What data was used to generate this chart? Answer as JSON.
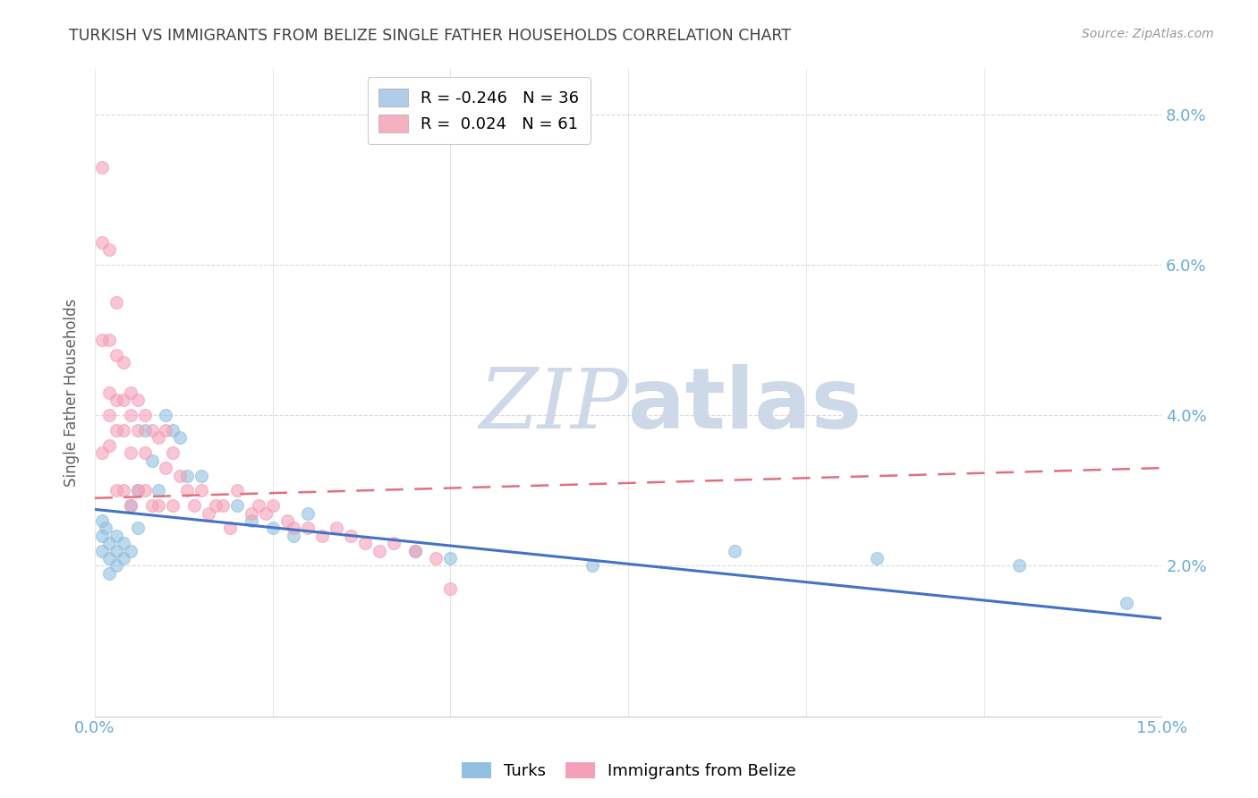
{
  "title": "TURKISH VS IMMIGRANTS FROM BELIZE SINGLE FATHER HOUSEHOLDS CORRELATION CHART",
  "source": "Source: ZipAtlas.com",
  "ylabel": "Single Father Households",
  "xmin": 0.0,
  "xmax": 0.15,
  "ymin": 0.0,
  "ymax": 0.086,
  "turks_scatter_x": [
    0.001,
    0.001,
    0.001,
    0.0015,
    0.002,
    0.002,
    0.002,
    0.003,
    0.003,
    0.003,
    0.004,
    0.004,
    0.005,
    0.005,
    0.006,
    0.006,
    0.007,
    0.008,
    0.009,
    0.01,
    0.011,
    0.012,
    0.013,
    0.015,
    0.02,
    0.022,
    0.025,
    0.028,
    0.03,
    0.045,
    0.05,
    0.07,
    0.09,
    0.11,
    0.13,
    0.145
  ],
  "turks_scatter_y": [
    0.026,
    0.024,
    0.022,
    0.025,
    0.023,
    0.021,
    0.019,
    0.024,
    0.022,
    0.02,
    0.023,
    0.021,
    0.028,
    0.022,
    0.03,
    0.025,
    0.038,
    0.034,
    0.03,
    0.04,
    0.038,
    0.037,
    0.032,
    0.032,
    0.028,
    0.026,
    0.025,
    0.024,
    0.027,
    0.022,
    0.021,
    0.02,
    0.022,
    0.021,
    0.02,
    0.015
  ],
  "belize_scatter_x": [
    0.001,
    0.001,
    0.001,
    0.001,
    0.002,
    0.002,
    0.002,
    0.002,
    0.002,
    0.003,
    0.003,
    0.003,
    0.003,
    0.003,
    0.004,
    0.004,
    0.004,
    0.004,
    0.005,
    0.005,
    0.005,
    0.005,
    0.006,
    0.006,
    0.006,
    0.007,
    0.007,
    0.007,
    0.008,
    0.008,
    0.009,
    0.009,
    0.01,
    0.01,
    0.011,
    0.011,
    0.012,
    0.013,
    0.014,
    0.015,
    0.016,
    0.017,
    0.018,
    0.019,
    0.02,
    0.022,
    0.023,
    0.024,
    0.025,
    0.027,
    0.028,
    0.03,
    0.032,
    0.034,
    0.036,
    0.038,
    0.04,
    0.042,
    0.045,
    0.048,
    0.05
  ],
  "belize_scatter_y": [
    0.073,
    0.063,
    0.05,
    0.035,
    0.062,
    0.05,
    0.043,
    0.04,
    0.036,
    0.055,
    0.048,
    0.042,
    0.038,
    0.03,
    0.047,
    0.042,
    0.038,
    0.03,
    0.043,
    0.04,
    0.035,
    0.028,
    0.042,
    0.038,
    0.03,
    0.04,
    0.035,
    0.03,
    0.038,
    0.028,
    0.037,
    0.028,
    0.038,
    0.033,
    0.035,
    0.028,
    0.032,
    0.03,
    0.028,
    0.03,
    0.027,
    0.028,
    0.028,
    0.025,
    0.03,
    0.027,
    0.028,
    0.027,
    0.028,
    0.026,
    0.025,
    0.025,
    0.024,
    0.025,
    0.024,
    0.023,
    0.022,
    0.023,
    0.022,
    0.021,
    0.017
  ],
  "turks_line_x": [
    0.0,
    0.15
  ],
  "turks_line_y": [
    0.0275,
    0.013
  ],
  "belize_line_x": [
    0.0,
    0.15
  ],
  "belize_line_y": [
    0.029,
    0.033
  ],
  "scatter_color_turks": "#92c0e0",
  "scatter_color_belize": "#f4a0b8",
  "line_color_turks": "#4472c4",
  "line_color_belize": "#e07080",
  "legend_label_turks": "R = -0.246   N = 36",
  "legend_label_belize": "R =  0.024   N = 61",
  "legend_box_color_turks": "#b0cce8",
  "legend_box_color_belize": "#f4b0c0",
  "watermark_zip": "ZIP",
  "watermark_atlas": "atlas",
  "watermark_color": "#cdd9e8",
  "grid_color": "#d0d0d0",
  "title_color": "#404040",
  "axis_label_color": "#606060",
  "tick_label_color": "#6aaad4",
  "source_color": "#999999"
}
